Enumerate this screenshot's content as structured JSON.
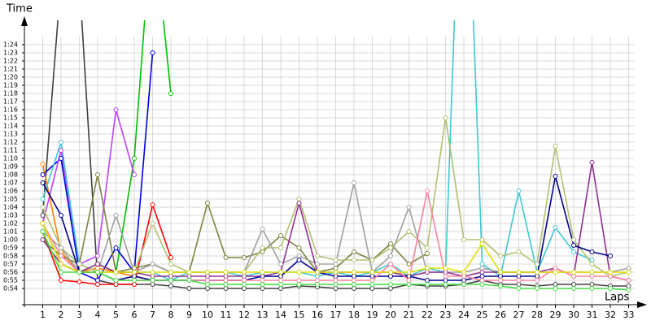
{
  "chart_data": {
    "type": "line",
    "y_label": "Time",
    "x_label": "Laps",
    "x": [
      1,
      2,
      3,
      4,
      5,
      6,
      7,
      8,
      9,
      10,
      11,
      12,
      13,
      14,
      15,
      16,
      17,
      18,
      19,
      20,
      21,
      22,
      23,
      24,
      25,
      26,
      27,
      28,
      29,
      30,
      31,
      32,
      33
    ],
    "xlim": [
      0,
      34
    ],
    "ylim": [
      52,
      87
    ],
    "yticks": [
      {
        "value": 54,
        "label": "0:54"
      },
      {
        "value": 55,
        "label": "0:55"
      },
      {
        "value": 56,
        "label": "0:56"
      },
      {
        "value": 57,
        "label": "0:57"
      },
      {
        "value": 58,
        "label": "0:58"
      },
      {
        "value": 59,
        "label": "0:59"
      },
      {
        "value": 60,
        "label": "1:00"
      },
      {
        "value": 61,
        "label": "1:01"
      },
      {
        "value": 62,
        "label": "1:02"
      },
      {
        "value": 63,
        "label": "1:03"
      },
      {
        "value": 64,
        "label": "1:04"
      },
      {
        "value": 65,
        "label": "1:05"
      },
      {
        "value": 66,
        "label": "1:06"
      },
      {
        "value": 67,
        "label": "1:07"
      },
      {
        "value": 68,
        "label": "1:08"
      },
      {
        "value": 69,
        "label": "1:09"
      },
      {
        "value": 70,
        "label": "1:10"
      },
      {
        "value": 71,
        "label": "1:11"
      },
      {
        "value": 72,
        "label": "1:12"
      },
      {
        "value": 73,
        "label": "1:13"
      },
      {
        "value": 74,
        "label": "1:14"
      },
      {
        "value": 75,
        "label": "1:15"
      },
      {
        "value": 76,
        "label": "1:16"
      },
      {
        "value": 77,
        "label": "1:17"
      },
      {
        "value": 78,
        "label": "1:18"
      },
      {
        "value": 79,
        "label": "1:19"
      },
      {
        "value": 80,
        "label": "1:20"
      },
      {
        "value": 81,
        "label": "1:21"
      },
      {
        "value": 82,
        "label": "1:22"
      },
      {
        "value": 83,
        "label": "1:23"
      },
      {
        "value": 84,
        "label": "1:24"
      }
    ],
    "grid": true,
    "series": [
      {
        "color": "#404040",
        "values": [
          63,
          92,
          92,
          55,
          54.5,
          54.5,
          54.5,
          54.3,
          54,
          54,
          54,
          54,
          54,
          54,
          54.3,
          54.2,
          54,
          54,
          54,
          54,
          54.5,
          54.3,
          54.3,
          54.5,
          55,
          54.5,
          54.5,
          54.3,
          54.5,
          54.5,
          54.5,
          54.3,
          54.3
        ]
      },
      {
        "color": "#00c000",
        "values": [
          62,
          57,
          56,
          57,
          56,
          70,
          100,
          78,
          null,
          null,
          null,
          null,
          null,
          null,
          null,
          null,
          null,
          null,
          null,
          null,
          null,
          null,
          null,
          null,
          null,
          null,
          null,
          null,
          null,
          null,
          null,
          null,
          null
        ]
      },
      {
        "color": "#0000e0",
        "values": [
          68,
          70,
          56,
          55,
          59,
          56,
          83,
          null,
          null,
          null,
          null,
          null,
          null,
          null,
          null,
          null,
          null,
          null,
          null,
          null,
          null,
          null,
          null,
          null,
          null,
          null,
          null,
          null,
          null,
          null,
          null,
          null,
          null
        ]
      },
      {
        "color": "#c040ff",
        "values": [
          62,
          71,
          57,
          58,
          76,
          68,
          null,
          null,
          null,
          null,
          null,
          null,
          null,
          null,
          null,
          null,
          null,
          null,
          null,
          null,
          null,
          null,
          null,
          null,
          null,
          null,
          null,
          null,
          null,
          null,
          null,
          null,
          null
        ]
      },
      {
        "color": "#ff0000",
        "values": [
          61,
          55,
          54.8,
          54.5,
          54.5,
          54.5,
          64.3,
          57.8,
          null,
          null,
          null,
          null,
          null,
          null,
          null,
          null,
          null,
          null,
          null,
          null,
          null,
          null,
          null,
          null,
          null,
          null,
          null,
          null,
          null,
          null,
          null,
          null,
          null
        ]
      },
      {
        "color": "#ff8000",
        "values": [
          69.3,
          58.5,
          56,
          56.5,
          56,
          55.5,
          55,
          null,
          null,
          null,
          null,
          null,
          null,
          null,
          null,
          null,
          null,
          null,
          null,
          null,
          null,
          null,
          null,
          null,
          null,
          null,
          null,
          null,
          null,
          null,
          null,
          null,
          null
        ]
      },
      {
        "color": "#40c8d0",
        "values": [
          65,
          72,
          57,
          56,
          56,
          56,
          56,
          55,
          56,
          56,
          56,
          55.5,
          56,
          56,
          56,
          55.5,
          56,
          55.5,
          56,
          57,
          55.5,
          56.5,
          56,
          120,
          57,
          55.5,
          66,
          56,
          61.5,
          58.5,
          57.5,
          null,
          null
        ]
      },
      {
        "color": "#808040",
        "values": [
          60,
          58,
          57,
          68,
          56,
          56.5,
          57,
          56,
          56,
          64.5,
          57.8,
          57.8,
          58.5,
          60.5,
          59,
          56,
          56.5,
          58.5,
          57.5,
          59.5,
          57,
          58.3,
          null,
          null,
          null,
          null,
          null,
          null,
          null,
          null,
          null,
          null,
          null
        ]
      },
      {
        "color": "#b0c070",
        "values": [
          64,
          59,
          57,
          56,
          56,
          56,
          62,
          57,
          56,
          56,
          56,
          56,
          59,
          59,
          65,
          58,
          57.5,
          57.5,
          57.5,
          59,
          61,
          59,
          75,
          60,
          60,
          58,
          58.5,
          57,
          71.5,
          60,
          57,
          55.5,
          56
        ]
      },
      {
        "color": "#a0a0a0",
        "values": [
          61,
          59,
          56,
          56,
          63,
          56,
          57,
          56,
          56,
          56,
          56,
          56,
          61.3,
          57,
          58,
          57,
          57,
          67,
          56,
          58,
          64,
          56,
          56,
          56,
          56.5,
          56,
          56,
          56,
          56,
          56,
          56,
          56,
          56.5
        ]
      },
      {
        "color": "#903090",
        "values": [
          60,
          57,
          56,
          57,
          56,
          56,
          55.5,
          55.5,
          55.5,
          55.5,
          55.5,
          55.5,
          55.5,
          56,
          64.5,
          56,
          56,
          56,
          56,
          56,
          55.5,
          56,
          56,
          55.5,
          56,
          56,
          56,
          56,
          56.5,
          55.5,
          69.5,
          55.5,
          55
        ]
      },
      {
        "color": "#000090",
        "values": [
          67,
          63,
          56,
          56,
          55,
          55.5,
          55,
          55,
          55,
          55,
          55,
          55,
          55.5,
          55.5,
          57.5,
          56,
          55.5,
          55.5,
          55.5,
          55.5,
          55.5,
          55,
          55,
          55,
          55.5,
          55.5,
          55.5,
          55.5,
          67.8,
          59.3,
          58.5,
          58,
          null
        ]
      },
      {
        "color": "#ff80a0",
        "values": [
          62,
          58,
          56,
          56,
          55,
          55,
          55,
          55,
          55,
          55,
          55,
          55,
          55,
          55,
          55,
          55,
          55,
          55,
          55,
          57,
          55,
          66,
          55.5,
          55.5,
          55,
          55,
          55,
          55,
          56.5,
          55.5,
          55.5,
          55.5,
          55
        ]
      },
      {
        "color": "#e0e000",
        "values": [
          62,
          57,
          56,
          56,
          56,
          56,
          56,
          56,
          56,
          56,
          56,
          56,
          56,
          56,
          56,
          56,
          56,
          56,
          56,
          56,
          56,
          56.5,
          56.5,
          56,
          59.5,
          56,
          56,
          56,
          56,
          56,
          56,
          56,
          56
        ]
      },
      {
        "color": "#40e040",
        "values": [
          61,
          56,
          56,
          56,
          55,
          55,
          55,
          55,
          55,
          54.5,
          54.5,
          54.5,
          54.5,
          54.5,
          54.5,
          54.5,
          54.5,
          54.5,
          54.5,
          54.5,
          54.5,
          54.5,
          54.5,
          54.5,
          54.5,
          54.3,
          54,
          54,
          54,
          54,
          54,
          54,
          53.8
        ]
      }
    ]
  }
}
